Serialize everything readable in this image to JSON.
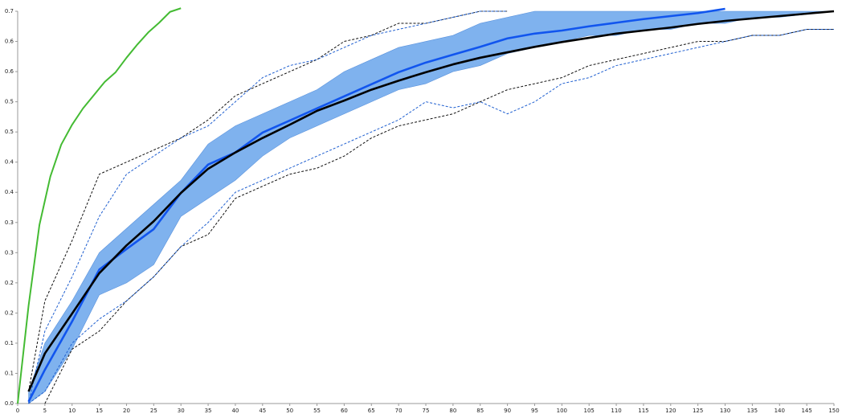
{
  "chart_data": {
    "type": "line",
    "xlim": [
      0,
      150
    ],
    "ylim": [
      0,
      0.65
    ],
    "xticks": [
      0,
      5,
      10,
      15,
      20,
      25,
      30,
      35,
      40,
      45,
      50,
      55,
      60,
      65,
      70,
      75,
      80,
      85,
      90,
      95,
      100,
      105,
      110,
      115,
      120,
      125,
      130,
      135,
      140,
      145,
      150
    ],
    "yticks": [
      {
        "value": 0,
        "label": "0.0"
      },
      {
        "value": 0.05,
        "label": "0.1"
      },
      {
        "value": 0.1,
        "label": "0.1"
      },
      {
        "value": 0.15,
        "label": "0.2"
      },
      {
        "value": 0.2,
        "label": "0.2"
      },
      {
        "value": 0.25,
        "label": "0.3"
      },
      {
        "value": 0.3,
        "label": "0.3"
      },
      {
        "value": 0.35,
        "label": "0.4"
      },
      {
        "value": 0.4,
        "label": "0.4"
      },
      {
        "value": 0.45,
        "label": "0.5"
      },
      {
        "value": 0.5,
        "label": "0.5"
      },
      {
        "value": 0.55,
        "label": "0.6"
      },
      {
        "value": 0.6,
        "label": "0.6"
      },
      {
        "value": 0.65,
        "label": "0.7"
      }
    ],
    "x": [
      2,
      5,
      10,
      15,
      20,
      25,
      30,
      35,
      40,
      45,
      50,
      55,
      60,
      65,
      70,
      75,
      80,
      85,
      90,
      95,
      100,
      105,
      110,
      115,
      120,
      125,
      130,
      135,
      140,
      145,
      150
    ],
    "series": [
      {
        "kind": "band",
        "color": "#7fb2ee",
        "lower": [
          0,
          0.02,
          0.09,
          0.18,
          0.2,
          0.23,
          0.31,
          0.34,
          0.37,
          0.41,
          0.44,
          0.46,
          0.48,
          0.5,
          0.52,
          0.53,
          0.55,
          0.56,
          0.58,
          0.59,
          0.6,
          0.61,
          0.61,
          0.62,
          0.62,
          0.63,
          0.63,
          0.64,
          0.64,
          0.645,
          0.65
        ],
        "upper": [
          0.02,
          0.1,
          0.17,
          0.25,
          0.29,
          0.33,
          0.37,
          0.43,
          0.46,
          0.48,
          0.5,
          0.52,
          0.55,
          0.57,
          0.59,
          0.6,
          0.61,
          0.63,
          0.64,
          0.65,
          0.65,
          0.65,
          0.65,
          0.65,
          0.65,
          0.65,
          0.65,
          0.65,
          0.65,
          0.65,
          0.65
        ]
      },
      {
        "kind": "dashed",
        "color": "#111111",
        "values": [
          0.02,
          0.17,
          0.27,
          0.38,
          0.4,
          0.42,
          0.44,
          0.47,
          0.51,
          0.53,
          0.55,
          0.57,
          0.6,
          0.61,
          0.63,
          0.63,
          0.64,
          0.65,
          0.65,
          null,
          null,
          null,
          null,
          null,
          null,
          null,
          null,
          null,
          null,
          null,
          null
        ]
      },
      {
        "kind": "dashed",
        "color": "#1f5fd0",
        "values": [
          0,
          0.12,
          0.21,
          0.31,
          0.38,
          0.41,
          0.44,
          0.46,
          0.5,
          0.54,
          0.56,
          0.57,
          0.59,
          0.61,
          0.62,
          0.63,
          0.64,
          0.65,
          0.65,
          null,
          null,
          null,
          null,
          null,
          null,
          null,
          null,
          null,
          null,
          null,
          null
        ]
      },
      {
        "kind": "dashed",
        "color": "#111111",
        "values": [
          null,
          0,
          0.09,
          0.12,
          0.17,
          0.21,
          0.26,
          0.28,
          0.34,
          0.36,
          0.38,
          0.39,
          0.41,
          0.44,
          0.46,
          0.47,
          0.48,
          0.5,
          0.52,
          0.53,
          0.54,
          0.56,
          0.57,
          0.58,
          0.59,
          0.6,
          0.6,
          0.61,
          0.61,
          0.62,
          0.62
        ]
      },
      {
        "kind": "dashed",
        "color": "#1f5fd0",
        "values": [
          0,
          0.02,
          0.1,
          0.14,
          0.17,
          0.21,
          0.26,
          0.3,
          0.35,
          0.37,
          0.39,
          0.41,
          0.43,
          0.45,
          0.47,
          0.5,
          0.49,
          0.5,
          0.48,
          0.5,
          0.53,
          0.54,
          0.56,
          0.57,
          0.58,
          0.59,
          0.6,
          0.61,
          0.61,
          0.62,
          0.62
        ]
      },
      {
        "kind": "thick",
        "color": "#1155ee",
        "values": [
          0.003,
          0.056,
          0.136,
          0.222,
          0.256,
          0.289,
          0.349,
          0.396,
          0.416,
          0.449,
          0.469,
          0.489,
          0.509,
          0.529,
          0.549,
          0.565,
          0.578,
          0.591,
          0.605,
          0.613,
          0.618,
          0.625,
          0.631,
          0.637,
          0.642,
          0.647,
          0.654,
          null,
          null,
          null,
          null
        ]
      },
      {
        "kind": "thick",
        "color": "#000000",
        "values": [
          0.02,
          0.083,
          0.149,
          0.216,
          0.262,
          0.302,
          0.349,
          0.389,
          0.416,
          0.44,
          0.462,
          0.485,
          0.502,
          0.52,
          0.535,
          0.549,
          0.562,
          0.573,
          0.582,
          0.591,
          0.599,
          0.606,
          0.613,
          0.618,
          0.623,
          0.629,
          0.634,
          0.638,
          0.642,
          0.646,
          0.65
        ]
      },
      {
        "kind": "solid",
        "color": "#44bb33",
        "x": [
          0,
          2,
          4,
          6,
          8,
          10,
          12,
          14,
          16,
          18,
          20,
          22,
          24,
          26,
          28,
          30
        ],
        "values": [
          0,
          0.162,
          0.296,
          0.376,
          0.429,
          0.462,
          0.489,
          0.511,
          0.533,
          0.549,
          0.573,
          0.595,
          0.615,
          0.631,
          0.649,
          0.655
        ]
      }
    ]
  }
}
